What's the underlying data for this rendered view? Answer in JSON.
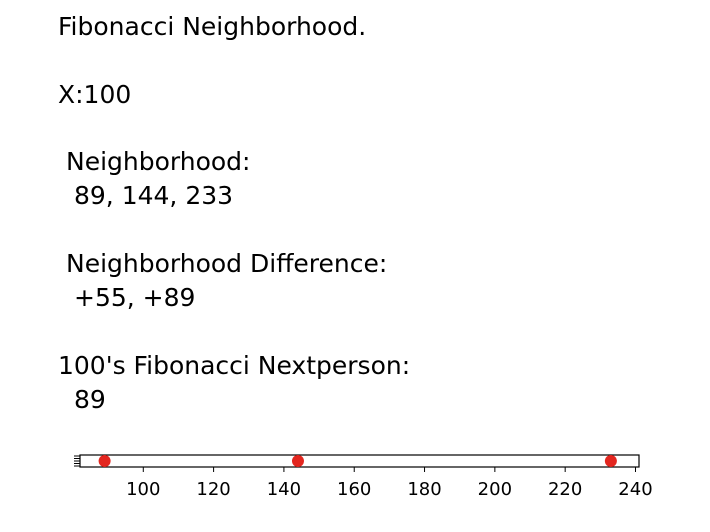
{
  "header": {
    "title": "Fibonacci Neighborhood."
  },
  "input": "X:100",
  "sections": [
    {
      "label": "Neighborhood:",
      "text": "89, 144, 233"
    },
    {
      "label": "Neighborhood Difference:",
      "text": "+55, +89"
    },
    {
      "label": "100's Fibonacci Nextperson:",
      "text": "89"
    }
  ],
  "chart_data": {
    "type": "strip",
    "values": [
      89,
      144,
      233
    ],
    "color": "#e3261f",
    "xlim": [
      82,
      241
    ],
    "xticks": [
      100,
      120,
      140,
      160,
      180,
      200,
      220,
      240
    ]
  }
}
